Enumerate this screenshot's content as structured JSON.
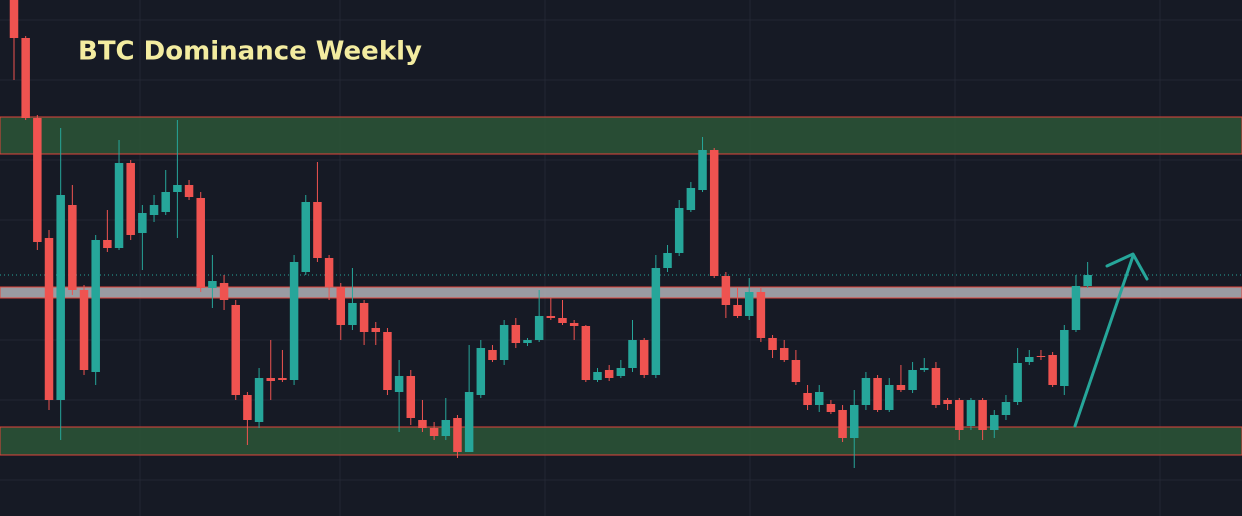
{
  "chart_data": {
    "type": "candlestick",
    "title": "BTC Dominance Weekly",
    "ylim": [
      4,
      520
    ],
    "up_color": "#26a69a",
    "down_color": "#ef5350",
    "last_price": 245,
    "zones": [
      {
        "from": 366,
        "to": 403,
        "color": "#2b5637"
      },
      {
        "from": 222,
        "to": 233,
        "color": "#b2b3b8"
      },
      {
        "from": 65,
        "to": 93,
        "color": "#2b5637"
      }
    ],
    "open": [
      520,
      482,
      402,
      282,
      120,
      315,
      230,
      148,
      280,
      272,
      357,
      287,
      305,
      308,
      328,
      335,
      322,
      232,
      237,
      215,
      125,
      98,
      142,
      142,
      140,
      248,
      318,
      262,
      233,
      195,
      217,
      192,
      188,
      128,
      144,
      100,
      92,
      84,
      102,
      68,
      125,
      170,
      160,
      195,
      177,
      180,
      204,
      202,
      197,
      194,
      140,
      150,
      144,
      152,
      180,
      145,
      252,
      267,
      310,
      330,
      370,
      244,
      215,
      204,
      228,
      182,
      172,
      160,
      127,
      115,
      116,
      110,
      82,
      115,
      142,
      110,
      135,
      130,
      150,
      152,
      120,
      120,
      94,
      120,
      90,
      105,
      118,
      158,
      164,
      165,
      134,
      190,
      234
    ],
    "high": [
      520,
      484,
      405,
      290,
      392,
      335,
      235,
      285,
      310,
      380,
      360,
      315,
      325,
      350,
      400,
      340,
      328,
      265,
      245,
      220,
      128,
      152,
      180,
      170,
      265,
      325,
      358,
      265,
      237,
      252,
      220,
      198,
      192,
      160,
      150,
      120,
      98,
      122,
      105,
      175,
      180,
      175,
      200,
      202,
      182,
      230,
      222,
      220,
      200,
      195,
      152,
      155,
      160,
      200,
      182,
      265,
      275,
      320,
      338,
      383,
      372,
      248,
      232,
      242,
      232,
      185,
      180,
      170,
      135,
      135,
      120,
      115,
      130,
      148,
      145,
      142,
      155,
      158,
      162,
      158,
      122,
      122,
      122,
      122,
      110,
      125,
      172,
      170,
      170,
      168,
      195,
      245,
      258
    ],
    "low": [
      440,
      400,
      270,
      110,
      80,
      225,
      145,
      135,
      268,
      270,
      280,
      250,
      298,
      305,
      282,
      320,
      228,
      212,
      210,
      120,
      75,
      92,
      120,
      138,
      135,
      245,
      258,
      220,
      180,
      190,
      175,
      175,
      125,
      88,
      95,
      88,
      80,
      80,
      62,
      68,
      122,
      158,
      155,
      172,
      174,
      178,
      200,
      195,
      180,
      138,
      138,
      139,
      142,
      148,
      142,
      142,
      248,
      264,
      308,
      328,
      242,
      202,
      202,
      200,
      178,
      162,
      158,
      135,
      110,
      108,
      106,
      78,
      52,
      110,
      108,
      108,
      128,
      127,
      148,
      112,
      110,
      80,
      90,
      80,
      82,
      100,
      115,
      155,
      160,
      133,
      125,
      188,
      232
    ],
    "close": [
      482,
      402,
      278,
      120,
      325,
      230,
      150,
      280,
      272,
      357,
      285,
      307,
      315,
      328,
      335,
      323,
      232,
      239,
      220,
      125,
      100,
      142,
      139,
      140,
      258,
      318,
      262,
      233,
      195,
      217,
      188,
      188,
      130,
      144,
      102,
      92,
      84,
      100,
      68,
      128,
      172,
      160,
      195,
      177,
      180,
      204,
      202,
      197,
      194,
      140,
      148,
      142,
      152,
      180,
      145,
      252,
      267,
      312,
      332,
      370,
      244,
      215,
      204,
      228,
      182,
      170,
      160,
      138,
      115,
      128,
      108,
      82,
      115,
      142,
      110,
      135,
      130,
      150,
      152,
      115,
      116,
      90,
      120,
      90,
      105,
      118,
      157,
      163,
      163,
      135,
      190,
      234,
      245
    ]
  }
}
